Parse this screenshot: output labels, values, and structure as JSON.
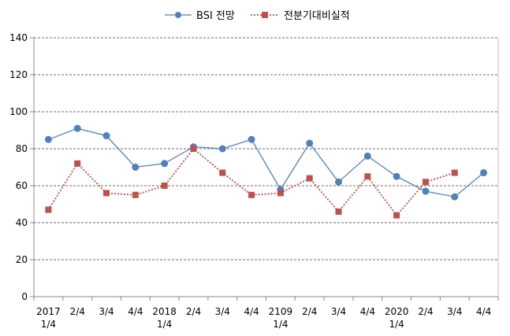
{
  "chart_data": {
    "type": "line",
    "x": [
      {
        "line1": "2017",
        "line2": "1/4"
      },
      {
        "line1": "2/4",
        "line2": ""
      },
      {
        "line1": "3/4",
        "line2": ""
      },
      {
        "line1": "4/4",
        "line2": ""
      },
      {
        "line1": "2018",
        "line2": "1/4"
      },
      {
        "line1": "2/4",
        "line2": ""
      },
      {
        "line1": "3/4",
        "line2": ""
      },
      {
        "line1": "4/4",
        "line2": ""
      },
      {
        "line1": "2109",
        "line2": "1/4"
      },
      {
        "line1": "2/4",
        "line2": ""
      },
      {
        "line1": "3/4",
        "line2": ""
      },
      {
        "line1": "4/4",
        "line2": ""
      },
      {
        "line1": "2020",
        "line2": "1/4"
      },
      {
        "line1": "2/4",
        "line2": ""
      },
      {
        "line1": "3/4",
        "line2": ""
      },
      {
        "line1": "4/4",
        "line2": ""
      }
    ],
    "series": [
      {
        "name": "BSI 전망",
        "color": "#4f81bd",
        "marker": "circle",
        "line_style": "solid",
        "values": [
          85,
          91,
          87,
          70,
          72,
          81,
          80,
          85,
          58,
          83,
          62,
          76,
          65,
          57,
          54,
          67
        ]
      },
      {
        "name": "전분기대비실적",
        "color": "#c0504d",
        "marker": "square",
        "line_style": "dotted",
        "values": [
          47,
          72,
          56,
          55,
          60,
          80,
          67,
          55,
          56,
          64,
          46,
          65,
          44,
          62,
          67,
          null
        ]
      }
    ],
    "yticks": [
      0,
      20,
      40,
      60,
      80,
      100,
      120,
      140
    ],
    "ylim": [
      0,
      140
    ],
    "grid": "horizontal-dashed",
    "legend_position": "top-center",
    "title": "",
    "xlabel": "",
    "ylabel": ""
  }
}
